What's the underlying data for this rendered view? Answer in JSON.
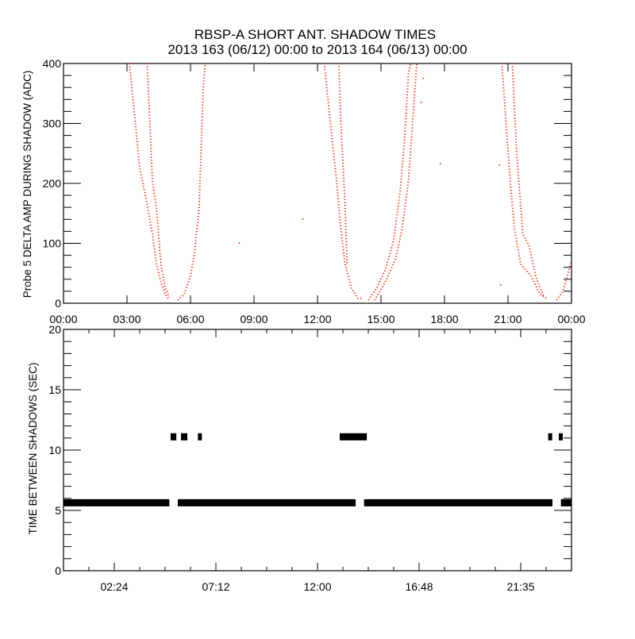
{
  "chart_data": [
    {
      "type": "scatter",
      "title": "RBSP-A SHORT ANT. SHADOW TIMES",
      "subtitle": "2013 163 (06/12) 00:00 to 2013 164 (06/13) 00:00",
      "xlabel": "",
      "ylabel": "Probe 5 DELTA AMP DURING SHADOW (ADC)",
      "xlim_hours": [
        0,
        24
      ],
      "ylim": [
        0,
        400
      ],
      "x_ticks_hours": [
        0,
        3,
        6,
        9,
        12,
        15,
        18,
        21,
        24
      ],
      "x_tick_labels": [
        "00:00",
        "03:00",
        "06:00",
        "09:00",
        "12:00",
        "15:00",
        "18:00",
        "21:00",
        "00:00"
      ],
      "y_ticks": [
        0,
        100,
        200,
        300,
        400
      ],
      "y_tick_labels": [
        "0",
        "100",
        "200",
        "300",
        "400"
      ],
      "color": "#ff2200",
      "series": [
        {
          "name": "pass1-desc-a",
          "points": [
            [
              3.1,
              400
            ],
            [
              3.3,
              330
            ],
            [
              3.6,
              220
            ],
            [
              3.9,
              170
            ],
            [
              4.2,
              110
            ],
            [
              4.4,
              60
            ],
            [
              4.6,
              30
            ],
            [
              4.8,
              10
            ],
            [
              5.0,
              0
            ]
          ]
        },
        {
          "name": "pass1-desc-b",
          "points": [
            [
              3.95,
              400
            ],
            [
              4.05,
              320
            ],
            [
              4.2,
              200
            ],
            [
              4.4,
              150
            ],
            [
              4.6,
              60
            ],
            [
              4.8,
              20
            ],
            [
              5.0,
              5
            ]
          ]
        },
        {
          "name": "pass1-asc",
          "points": [
            [
              5.4,
              0
            ],
            [
              5.7,
              10
            ],
            [
              6.0,
              40
            ],
            [
              6.2,
              80
            ],
            [
              6.4,
              150
            ],
            [
              6.5,
              250
            ],
            [
              6.6,
              350
            ],
            [
              6.7,
              400
            ]
          ]
        },
        {
          "name": "pass2-desc-a",
          "points": [
            [
              12.3,
              400
            ],
            [
              12.6,
              300
            ],
            [
              12.9,
              200
            ],
            [
              13.1,
              120
            ],
            [
              13.3,
              60
            ],
            [
              13.6,
              20
            ],
            [
              13.9,
              3
            ],
            [
              14.1,
              3
            ]
          ]
        },
        {
          "name": "pass2-desc-b",
          "points": [
            [
              13.0,
              400
            ],
            [
              13.1,
              300
            ],
            [
              13.3,
              160
            ],
            [
              13.4,
              60
            ]
          ]
        },
        {
          "name": "pass2-asc-a",
          "points": [
            [
              14.4,
              0
            ],
            [
              14.8,
              20
            ],
            [
              15.2,
              50
            ],
            [
              15.6,
              100
            ],
            [
              15.9,
              180
            ],
            [
              16.1,
              260
            ],
            [
              16.3,
              380
            ],
            [
              16.45,
              400
            ]
          ]
        },
        {
          "name": "pass2-asc-b",
          "points": [
            [
              14.7,
              0
            ],
            [
              15.2,
              30
            ],
            [
              15.7,
              70
            ],
            [
              16.0,
              120
            ],
            [
              16.3,
              200
            ],
            [
              16.5,
              300
            ],
            [
              16.7,
              400
            ]
          ]
        },
        {
          "name": "pass3-desc-a",
          "points": [
            [
              20.7,
              400
            ],
            [
              20.9,
              300
            ],
            [
              21.1,
              200
            ],
            [
              21.3,
              120
            ],
            [
              21.6,
              60
            ],
            [
              22.1,
              40
            ],
            [
              22.5,
              10
            ],
            [
              22.8,
              3
            ]
          ]
        },
        {
          "name": "pass3-desc-b",
          "points": [
            [
              21.2,
              400
            ],
            [
              21.4,
              250
            ],
            [
              21.7,
              110
            ],
            [
              22.0,
              90
            ],
            [
              22.3,
              40
            ],
            [
              22.7,
              5
            ]
          ]
        },
        {
          "name": "pass3-asc",
          "points": [
            [
              23.3,
              0
            ],
            [
              23.6,
              15
            ],
            [
              23.8,
              40
            ],
            [
              24.0,
              65
            ]
          ]
        }
      ],
      "isolated_points": [
        [
          8.3,
          95
        ],
        [
          11.3,
          135
        ],
        [
          16.9,
          330
        ],
        [
          17.0,
          370
        ],
        [
          17.8,
          228
        ],
        [
          20.6,
          225
        ],
        [
          20.65,
          25
        ]
      ]
    },
    {
      "type": "scatter",
      "title": "",
      "xlabel": "",
      "ylabel": "TIME BETWEEN SHADOWS (SEC)",
      "xlim_hours": [
        0,
        24
      ],
      "ylim": [
        0,
        20
      ],
      "x_ticks_hours": [
        2.4,
        7.2,
        12.0,
        16.8,
        21.6
      ],
      "x_tick_labels": [
        "02:24",
        "07:12",
        "12:00",
        "16:48",
        "21:35"
      ],
      "y_ticks": [
        0,
        5,
        10,
        15,
        20
      ],
      "y_tick_labels": [
        "0",
        "5",
        "10",
        "15",
        "20"
      ],
      "color": "#000000",
      "baseline_value": 5.6,
      "baseline_ranges_hours": [
        [
          0.0,
          5.0
        ],
        [
          5.4,
          13.8
        ],
        [
          14.2,
          23.1
        ],
        [
          23.5,
          24.0
        ]
      ],
      "high_value": 11.1,
      "high_ranges_hours": [
        [
          5.06,
          5.33
        ],
        [
          5.55,
          5.85
        ],
        [
          6.35,
          6.42
        ],
        [
          13.05,
          14.33
        ],
        [
          22.9,
          23.05
        ],
        [
          23.4,
          23.55
        ]
      ]
    }
  ]
}
